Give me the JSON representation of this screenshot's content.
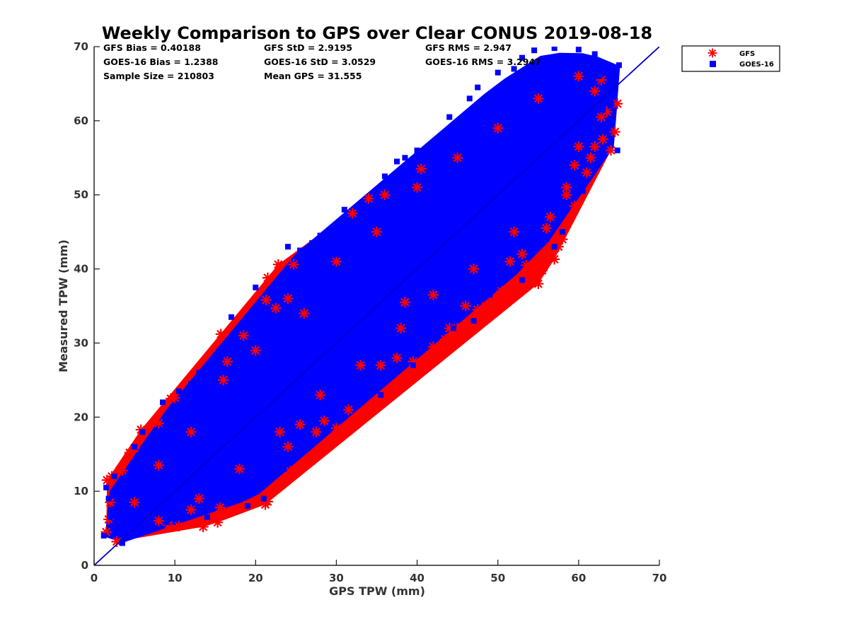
{
  "chart_data": {
    "type": "scatter",
    "title": "Weekly Comparison to GPS over Clear CONUS 2019-08-18",
    "xlabel": "GPS TPW (mm)",
    "ylabel": "Measured TPW (mm)",
    "xlim": [
      0,
      70
    ],
    "ylim": [
      0,
      70
    ],
    "xticks": [
      "0",
      "10",
      "20",
      "30",
      "40",
      "50",
      "60",
      "70"
    ],
    "yticks": [
      "0",
      "10",
      "20",
      "30",
      "40",
      "50",
      "60",
      "70"
    ],
    "grid": false,
    "legend_position": "outside-top-right",
    "one_to_one_line": {
      "from": [
        0,
        0
      ],
      "to": [
        70,
        70
      ],
      "color": "#0000cc"
    },
    "stats": [
      "GFS Bias = 0.40188",
      "GFS StD = 2.9195",
      "GFS RMS = 2.947",
      "GOES-16 Bias = 1.2388",
      "GOES-16 StD = 3.0529",
      "GOES-16 RMS = 3.2947",
      "Sample Size = 210803",
      "Mean GPS = 31.555"
    ],
    "series": [
      {
        "name": "GFS",
        "marker": "asterisk",
        "color": "#ff0000",
        "points": [
          [
            1.5,
            4.5
          ],
          [
            1.8,
            6.2
          ],
          [
            2.0,
            8.5
          ],
          [
            1.6,
            11.5
          ],
          [
            2.2,
            12.0
          ],
          [
            3.5,
            12.8
          ],
          [
            2.8,
            3.2
          ],
          [
            4.4,
            15.2
          ],
          [
            5.0,
            15.8
          ],
          [
            5.8,
            18.3
          ],
          [
            8.0,
            19.2
          ],
          [
            9.5,
            22.5
          ],
          [
            10.0,
            22.6
          ],
          [
            9.2,
            5.4
          ],
          [
            10.5,
            5.3
          ],
          [
            13.5,
            5.2
          ],
          [
            15.3,
            5.8
          ],
          [
            15.6,
            7.8
          ],
          [
            12.0,
            7.5
          ],
          [
            15.7,
            31.2
          ],
          [
            18.5,
            31.0
          ],
          [
            16.5,
            27.5
          ],
          [
            19.0,
            8.2
          ],
          [
            21.2,
            8.2
          ],
          [
            21.5,
            8.6
          ],
          [
            21.3,
            35.8
          ],
          [
            21.5,
            38.8
          ],
          [
            22.5,
            34.7
          ],
          [
            22.8,
            40.6
          ],
          [
            24.0,
            36.0
          ],
          [
            24.7,
            40.6
          ],
          [
            24.3,
            12.7
          ],
          [
            24.0,
            16.0
          ],
          [
            25.5,
            19.0
          ],
          [
            27.5,
            18.0
          ],
          [
            28.5,
            19.5
          ],
          [
            30.0,
            18.5
          ],
          [
            31.5,
            21.0
          ],
          [
            32.0,
            47.5
          ],
          [
            34.0,
            49.5
          ],
          [
            36.0,
            50.0
          ],
          [
            35.5,
            27.0
          ],
          [
            37.5,
            28.0
          ],
          [
            38.5,
            35.5
          ],
          [
            39.5,
            27.5
          ],
          [
            40.5,
            53.5
          ],
          [
            42.0,
            29.5
          ],
          [
            43.5,
            30.5
          ],
          [
            44.0,
            32.0
          ],
          [
            45.0,
            32.0
          ],
          [
            46.0,
            35.0
          ],
          [
            47.5,
            34.5
          ],
          [
            48.5,
            35.0
          ],
          [
            49.5,
            35.5
          ],
          [
            50.5,
            37.0
          ],
          [
            51.0,
            36.5
          ],
          [
            51.5,
            41.0
          ],
          [
            53.0,
            42.0
          ],
          [
            53.5,
            40.5
          ],
          [
            55.0,
            38.0
          ],
          [
            55.5,
            39.8
          ],
          [
            56.0,
            45.5
          ],
          [
            56.5,
            47.0
          ],
          [
            57.0,
            41.3
          ],
          [
            57.5,
            43.0
          ],
          [
            58.0,
            44.0
          ],
          [
            58.5,
            50.0
          ],
          [
            59.5,
            48.5
          ],
          [
            59.5,
            54.0
          ],
          [
            61.0,
            53.0
          ],
          [
            61.5,
            55.0
          ],
          [
            62.0,
            56.5
          ],
          [
            63.0,
            57.5
          ],
          [
            62.8,
            60.5
          ],
          [
            62.8,
            65.5
          ],
          [
            63.5,
            61.2
          ],
          [
            64.5,
            58.5
          ],
          [
            64.8,
            62.3
          ],
          [
            64.0,
            56.0
          ],
          [
            62.0,
            64.0
          ],
          [
            60.0,
            56.5
          ],
          [
            58.5,
            51.0
          ],
          [
            52.0,
            45.0
          ],
          [
            47.0,
            40.0
          ],
          [
            42.0,
            36.5
          ],
          [
            38.0,
            32.0
          ],
          [
            33.0,
            27.0
          ],
          [
            28.0,
            23.0
          ],
          [
            23.0,
            18.0
          ],
          [
            18.0,
            13.0
          ],
          [
            13.0,
            9.0
          ],
          [
            8.0,
            6.0
          ],
          [
            5.0,
            8.5
          ],
          [
            8.0,
            13.5
          ],
          [
            12.0,
            18.0
          ],
          [
            16.0,
            25.0
          ],
          [
            20.0,
            29.0
          ],
          [
            26.0,
            34.0
          ],
          [
            30.0,
            41.0
          ],
          [
            35.0,
            45.0
          ],
          [
            40.0,
            51.0
          ],
          [
            45.0,
            55.0
          ],
          [
            50.0,
            59.0
          ],
          [
            55.0,
            63.0
          ],
          [
            60.0,
            66.0
          ]
        ]
      },
      {
        "name": "GOES-16",
        "marker": "square",
        "color": "#0000ff",
        "points": [
          [
            1.2,
            4.0
          ],
          [
            1.5,
            10.5
          ],
          [
            2.5,
            12.0
          ],
          [
            3.5,
            3.0
          ],
          [
            5.0,
            16.0
          ],
          [
            7.0,
            17.0
          ],
          [
            8.5,
            22.0
          ],
          [
            10.5,
            23.5
          ],
          [
            12.0,
            24.5
          ],
          [
            15.5,
            29.0
          ],
          [
            17.0,
            33.5
          ],
          [
            19.0,
            32.0
          ],
          [
            20.0,
            37.5
          ],
          [
            24.0,
            43.0
          ],
          [
            25.5,
            42.5
          ],
          [
            27.0,
            43.5
          ],
          [
            28.0,
            44.5
          ],
          [
            30.0,
            42.0
          ],
          [
            33.5,
            48.5
          ],
          [
            34.0,
            47.5
          ],
          [
            36.0,
            52.5
          ],
          [
            37.5,
            54.5
          ],
          [
            38.5,
            55.0
          ],
          [
            40.0,
            56.0
          ],
          [
            41.0,
            52.0
          ],
          [
            43.0,
            57.0
          ],
          [
            45.0,
            59.5
          ],
          [
            46.5,
            63.0
          ],
          [
            47.5,
            64.5
          ],
          [
            50.0,
            66.5
          ],
          [
            52.0,
            67.0
          ],
          [
            53.0,
            68.5
          ],
          [
            54.5,
            69.5
          ],
          [
            57.0,
            69.8
          ],
          [
            60.0,
            69.6
          ],
          [
            62.0,
            69.0
          ],
          [
            62.5,
            66.0
          ],
          [
            63.0,
            61.5
          ],
          [
            64.0,
            62.0
          ],
          [
            65.0,
            67.5
          ],
          [
            64.8,
            56.0
          ],
          [
            60.5,
            50.5
          ],
          [
            57.0,
            43.0
          ],
          [
            53.0,
            38.5
          ],
          [
            49.0,
            36.5
          ],
          [
            47.0,
            33.0
          ],
          [
            42.5,
            31.0
          ],
          [
            39.5,
            27.0
          ],
          [
            35.5,
            23.0
          ],
          [
            30.0,
            21.0
          ],
          [
            25.5,
            17.5
          ],
          [
            23.0,
            14.5
          ],
          [
            19.0,
            8.0
          ],
          [
            21.0,
            9.0
          ],
          [
            14.0,
            6.5
          ],
          [
            9.0,
            5.8
          ],
          [
            6.0,
            5.0
          ],
          [
            4.0,
            4.5
          ],
          [
            2.0,
            6.5
          ],
          [
            1.8,
            9.0
          ],
          [
            16.0,
            10.5
          ],
          [
            23.5,
            13.0
          ],
          [
            32.0,
            25.0
          ],
          [
            44.5,
            32.0
          ],
          [
            58.0,
            45.0
          ],
          [
            61.0,
            57.0
          ],
          [
            63.5,
            63.5
          ],
          [
            56.5,
            66.0
          ],
          [
            44.0,
            60.5
          ],
          [
            31.0,
            48.0
          ],
          [
            22.0,
            37.0
          ],
          [
            13.0,
            26.0
          ],
          [
            6.0,
            18.0
          ]
        ]
      }
    ]
  }
}
